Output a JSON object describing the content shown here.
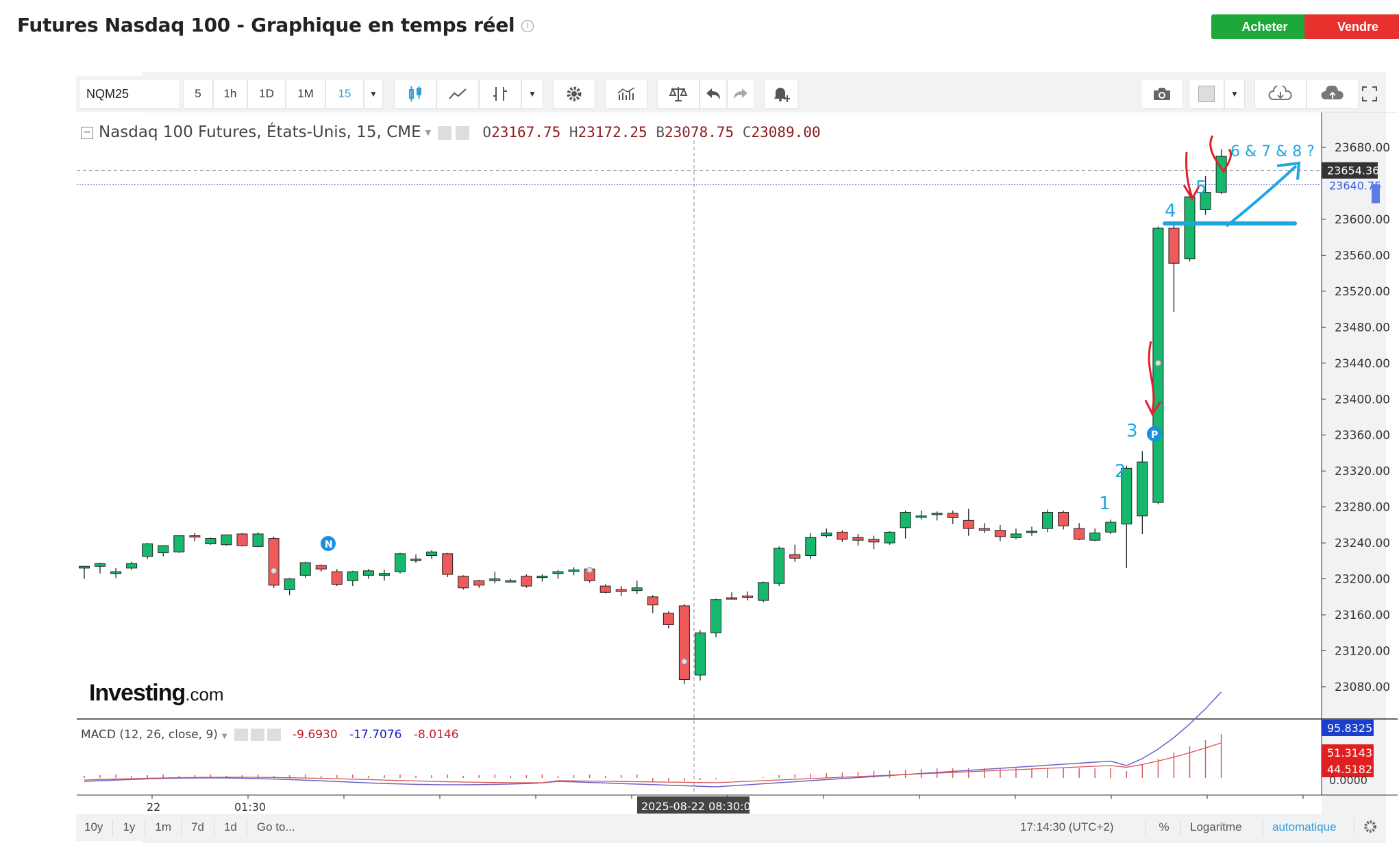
{
  "page": {
    "title": "Futures Nasdaq 100 - Graphique en temps réel",
    "buy_label": "Acheter",
    "sell_label": "Vendre",
    "colors": {
      "buy": "#1fa83a",
      "sell": "#e8302d",
      "up_candle": "#16b86b",
      "down_candle": "#ef5a5a",
      "accent": "#2e9fd8"
    }
  },
  "toolbar": {
    "symbol": "NQM25",
    "intervals": [
      "5",
      "1h",
      "1D",
      "1M",
      "15"
    ],
    "selected_interval": "15"
  },
  "legend": {
    "instrument": "Nasdaq 100 Futures, États-Unis, 15, CME",
    "o_label": "O",
    "o_value": "23167.75",
    "h_label": "H",
    "h_value": "23172.25",
    "b_label": "B",
    "b_value": "23078.75",
    "c_label": "C",
    "c_value": "23089.00"
  },
  "macd": {
    "label": "MACD (12, 26, close, 9)",
    "v1": "-9.6930",
    "v2": "-17.7076",
    "v3": "-8.0146",
    "axis_badges": [
      "95.8325",
      "51.3143",
      "44.5182"
    ],
    "axis_tick": "0.0000"
  },
  "price_axis": {
    "ticks": [
      "23680.00",
      "23600.00",
      "23560.00",
      "23520.00",
      "23480.00",
      "23440.00",
      "23400.00",
      "23360.00",
      "23320.00",
      "23280.00",
      "23240.00",
      "23200.00",
      "23160.00",
      "23120.00",
      "23080.00"
    ],
    "current_price": "23654.36",
    "hidden_price": "23640.75"
  },
  "time_axis": {
    "labels": [
      "22",
      "01:30"
    ],
    "crosshair_label": "2025-08-22 08:30:00"
  },
  "annotations": {
    "numbers": [
      "1",
      "2",
      "3",
      "4",
      "5",
      "6 & 7 & 8 ?"
    ],
    "badge_n": "N",
    "badge_p": "P"
  },
  "watermark": {
    "brand": "Investing",
    "suffix": ".com"
  },
  "bottom_bar": {
    "ranges": [
      "10y",
      "1y",
      "1m",
      "7d",
      "1d"
    ],
    "goto": "Go to...",
    "time": "17:14:30 (UTC+2)",
    "percent": "%",
    "log": "Logaritme",
    "auto": "automatique"
  },
  "chart_data": {
    "type": "candlestick",
    "interval": "15",
    "ylim": [
      23070,
      23700
    ],
    "candles": [
      [
        23212,
        23214,
        23200,
        23213
      ],
      [
        23214,
        23217,
        23206,
        23218
      ],
      [
        23206,
        23208,
        23201,
        23212
      ],
      [
        23212,
        23217,
        23210,
        23219
      ],
      [
        23225,
        23239,
        23222,
        23240
      ],
      [
        23229,
        23237,
        23225,
        23234
      ],
      [
        23230,
        23248,
        23229,
        23248
      ],
      [
        23248,
        23247,
        23242,
        23251
      ],
      [
        23239,
        23245,
        23238,
        23246
      ],
      [
        23238,
        23249,
        23237,
        23249
      ],
      [
        23250,
        23237,
        23236,
        23251
      ],
      [
        23236,
        23250,
        23235,
        23252
      ],
      [
        23245,
        23193,
        23190,
        23247
      ],
      [
        23188,
        23200,
        23182,
        23201
      ],
      [
        23204,
        23218,
        23201,
        23219
      ],
      [
        23215,
        23211,
        23208,
        23216
      ],
      [
        23208,
        23194,
        23192,
        23211
      ],
      [
        23198,
        23208,
        23192,
        23209
      ],
      [
        23204,
        23209,
        23200,
        23211
      ],
      [
        23204,
        23206,
        23198,
        23210
      ],
      [
        23208,
        23228,
        23206,
        23229
      ],
      [
        23222,
        23222,
        23218,
        23227
      ],
      [
        23226,
        23230,
        23222,
        23232
      ],
      [
        23228,
        23205,
        23202,
        23229
      ],
      [
        23203,
        23190,
        23188,
        23204
      ],
      [
        23198,
        23193,
        23190,
        23199
      ],
      [
        23198,
        23200,
        23195,
        23208
      ],
      [
        23198,
        23198,
        23196,
        23200
      ],
      [
        23203,
        23192,
        23190,
        23205
      ],
      [
        23203,
        23203,
        23197,
        23205
      ],
      [
        23206,
        23208,
        23200,
        23210
      ],
      [
        23210,
        23210,
        23204,
        23213
      ],
      [
        23211,
        23198,
        23196,
        23212
      ],
      [
        23192,
        23185,
        23184,
        23194
      ],
      [
        23188,
        23186,
        23181,
        23192
      ],
      [
        23187,
        23190,
        23183,
        23198
      ],
      [
        23180,
        23171,
        23162,
        23182
      ],
      [
        23162,
        23149,
        23145,
        23164
      ],
      [
        23170,
        23088,
        23083,
        23172
      ],
      [
        23093,
        23140,
        23087,
        23143
      ],
      [
        23140,
        23177,
        23135,
        23178
      ],
      [
        23179,
        23178,
        23177,
        23185
      ],
      [
        23181,
        23180,
        23176,
        23186
      ],
      [
        23176,
        23196,
        23174,
        23197
      ],
      [
        23195,
        23234,
        23192,
        23236
      ],
      [
        23227,
        23223,
        23219,
        23238
      ],
      [
        23226,
        23246,
        23222,
        23251
      ],
      [
        23248,
        23251,
        23246,
        23256
      ],
      [
        23252,
        23244,
        23241,
        23254
      ],
      [
        23246,
        23243,
        23237,
        23250
      ],
      [
        23244,
        23241,
        23233,
        23248
      ],
      [
        23240,
        23252,
        23238,
        23253
      ],
      [
        23257,
        23274,
        23245,
        23276
      ],
      [
        23270,
        23270,
        23266,
        23276
      ],
      [
        23272,
        23273,
        23265,
        23275
      ],
      [
        23273,
        23268,
        23261,
        23276
      ],
      [
        23265,
        23256,
        23248,
        23278
      ],
      [
        23256,
        23254,
        23251,
        23262
      ],
      [
        23254,
        23247,
        23242,
        23260
      ],
      [
        23246,
        23250,
        23244,
        23256
      ],
      [
        23252,
        23253,
        23248,
        23258
      ],
      [
        23256,
        23274,
        23252,
        23277
      ],
      [
        23274,
        23259,
        23255,
        23276
      ],
      [
        23256,
        23244,
        23243,
        23262
      ],
      [
        23243,
        23251,
        23242,
        23256
      ],
      [
        23252,
        23263,
        23250,
        23266
      ],
      [
        23261,
        23323,
        23212,
        23326
      ],
      [
        23270,
        23330,
        23250,
        23342
      ],
      [
        23285,
        23590,
        23283,
        23592
      ],
      [
        23590,
        23551,
        23497,
        23596
      ],
      [
        23556,
        23625,
        23553,
        23633
      ],
      [
        23611,
        23630,
        23605,
        23648
      ],
      [
        23630,
        23670,
        23628,
        23678
      ]
    ]
  }
}
